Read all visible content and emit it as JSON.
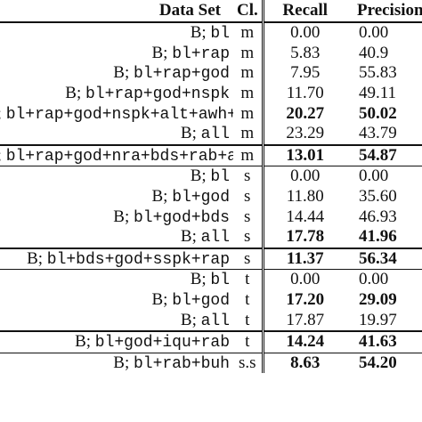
{
  "headers": {
    "dataset": "Data Set",
    "cl": "Cl.",
    "recall": "Recall",
    "precision": "Precision"
  },
  "rows": [
    {
      "prefix": "B;",
      "code": "bl",
      "cl": "m",
      "recall": "0.00",
      "precision": "0.00",
      "bold_recall": false,
      "bold_precision": false
    },
    {
      "prefix": "B;",
      "code": "bl+rap",
      "cl": "m",
      "recall": "5.83",
      "precision": "40.9",
      "bold_recall": false,
      "bold_precision": false
    },
    {
      "prefix": "B;",
      "code": "bl+rap+god",
      "cl": "m",
      "recall": "7.95",
      "precision": "55.83",
      "bold_recall": false,
      "bold_precision": false
    },
    {
      "prefix": "B;",
      "code": "bl+rap+god+nspk",
      "cl": "m",
      "recall": "11.70",
      "precision": "49.11",
      "bold_recall": false,
      "bold_precision": false
    },
    {
      "prefix": "B;",
      "code": "bl+rap+god+nspk+alt+awh+nra+lal",
      "cl": "m",
      "recall": "20.27",
      "precision": "50.02",
      "bold_recall": true,
      "bold_precision": true
    },
    {
      "prefix": "B;",
      "code": "all",
      "cl": "m",
      "recall": "23.29",
      "precision": "43.79",
      "bold_recall": false,
      "bold_precision": false
    },
    {
      "prefix": "B;",
      "code": "bl+rap+god+nra+bds+rab+awh",
      "cl": "m",
      "recall": "13.01",
      "precision": "54.87",
      "bold_recall": true,
      "bold_precision": true
    },
    {
      "prefix": "B;",
      "code": "bl",
      "cl": "s",
      "recall": "0.00",
      "precision": "0.00",
      "bold_recall": false,
      "bold_precision": false
    },
    {
      "prefix": "B;",
      "code": "bl+god",
      "cl": "s",
      "recall": "11.80",
      "precision": "35.60",
      "bold_recall": false,
      "bold_precision": false
    },
    {
      "prefix": "B;",
      "code": "bl+god+bds",
      "cl": "s",
      "recall": "14.44",
      "precision": "46.93",
      "bold_recall": false,
      "bold_precision": false
    },
    {
      "prefix": "B;",
      "code": "all",
      "cl": "s",
      "recall": "17.78",
      "precision": "41.96",
      "bold_recall": true,
      "bold_precision": true
    },
    {
      "prefix": "B;",
      "code": "bl+bds+god+sspk+rap",
      "cl": "s",
      "recall": "11.37",
      "precision": "56.34",
      "bold_recall": true,
      "bold_precision": true
    },
    {
      "prefix": "B;",
      "code": "bl",
      "cl": "t",
      "recall": "0.00",
      "precision": "0.00",
      "bold_recall": false,
      "bold_precision": false
    },
    {
      "prefix": "B;",
      "code": "bl+god",
      "cl": "t",
      "recall": "17.20",
      "precision": "29.09",
      "bold_recall": true,
      "bold_precision": true
    },
    {
      "prefix": "B;",
      "code": "all",
      "cl": "t",
      "recall": "17.87",
      "precision": "19.97",
      "bold_recall": false,
      "bold_precision": false
    },
    {
      "prefix": "B;",
      "code": "bl+god+iqu+rab",
      "cl": "t",
      "recall": "14.24",
      "precision": "41.63",
      "bold_recall": true,
      "bold_precision": true
    },
    {
      "prefix": "B;",
      "code": "bl+rab+buh",
      "cl": "s.s",
      "recall": "8.63",
      "precision": "54.20",
      "bold_recall": true,
      "bold_precision": true
    }
  ],
  "separators": {
    "6": "thick",
    "7": "thin",
    "11": "thick",
    "12": "thin",
    "15": "thick",
    "16": "thin"
  }
}
